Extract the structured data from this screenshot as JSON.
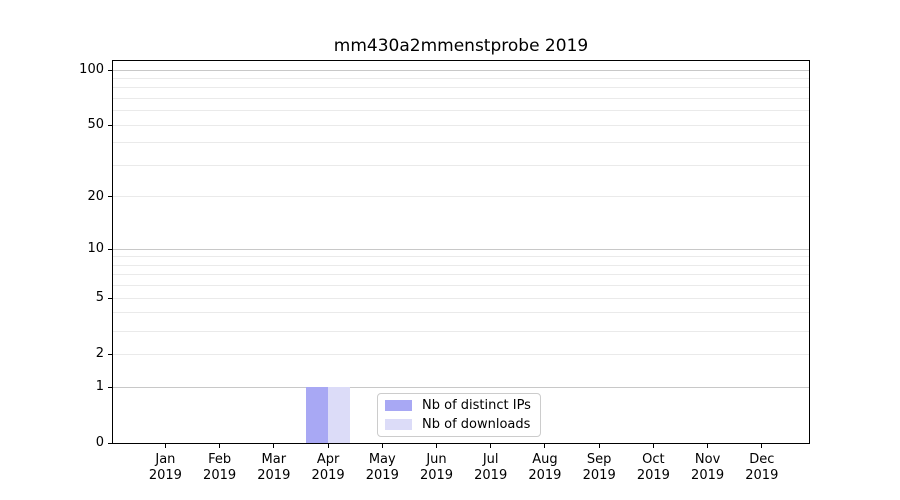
{
  "title": "mm430a2mmenstprobe 2019",
  "chart_data": {
    "type": "bar",
    "title": "mm430a2mmenstprobe 2019",
    "categories": [
      "Jan 2019",
      "Feb 2019",
      "Mar 2019",
      "Apr 2019",
      "May 2019",
      "Jun 2019",
      "Jul 2019",
      "Aug 2019",
      "Sep 2019",
      "Oct 2019",
      "Nov 2019",
      "Dec 2019"
    ],
    "series": [
      {
        "name": "Nb of distinct IPs",
        "color": "#a8a8f4",
        "values": [
          0,
          0,
          0,
          1,
          0,
          0,
          0,
          0,
          0,
          0,
          0,
          0
        ]
      },
      {
        "name": "Nb of downloads",
        "color": "#dcdcf8",
        "values": [
          0,
          0,
          0,
          1,
          0,
          0,
          0,
          0,
          0,
          0,
          0,
          0
        ]
      }
    ],
    "xlabel": "",
    "ylabel": "",
    "yscale": "log1p",
    "ylim": [
      0,
      113
    ],
    "y_ticks": [
      100,
      50,
      20,
      10,
      5,
      2,
      1,
      0
    ],
    "y_major_gridlines": [
      1,
      10,
      100
    ],
    "y_minor_gridlines": [
      2,
      3,
      4,
      5,
      6,
      7,
      8,
      9,
      20,
      30,
      40,
      50,
      60,
      70,
      80,
      90
    ],
    "grid": "both",
    "legend_position": "lower center"
  }
}
